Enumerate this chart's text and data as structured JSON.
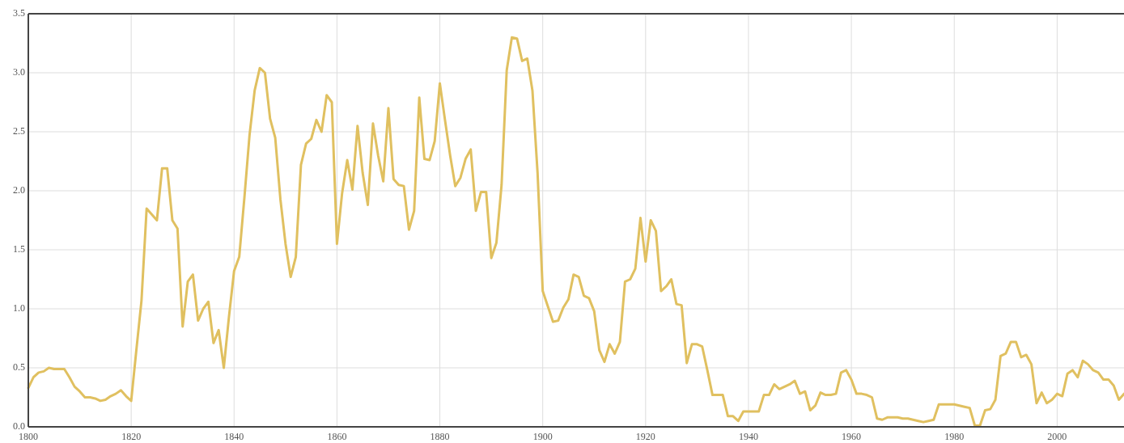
{
  "chart_data": {
    "type": "line",
    "x": [
      1800,
      1801,
      1802,
      1803,
      1804,
      1805,
      1806,
      1807,
      1808,
      1809,
      1810,
      1811,
      1812,
      1813,
      1814,
      1815,
      1816,
      1817,
      1818,
      1819,
      1820,
      1821,
      1822,
      1823,
      1824,
      1825,
      1826,
      1827,
      1828,
      1829,
      1830,
      1831,
      1832,
      1833,
      1834,
      1835,
      1836,
      1837,
      1838,
      1839,
      1840,
      1841,
      1842,
      1843,
      1844,
      1845,
      1846,
      1847,
      1848,
      1849,
      1850,
      1851,
      1852,
      1853,
      1854,
      1855,
      1856,
      1857,
      1858,
      1859,
      1860,
      1861,
      1862,
      1863,
      1864,
      1865,
      1866,
      1867,
      1868,
      1869,
      1870,
      1871,
      1872,
      1873,
      1874,
      1875,
      1876,
      1877,
      1878,
      1879,
      1880,
      1881,
      1882,
      1883,
      1884,
      1885,
      1886,
      1887,
      1888,
      1889,
      1890,
      1891,
      1892,
      1893,
      1894,
      1895,
      1896,
      1897,
      1898,
      1899,
      1900,
      1901,
      1902,
      1903,
      1904,
      1905,
      1906,
      1907,
      1908,
      1909,
      1910,
      1911,
      1912,
      1913,
      1914,
      1915,
      1916,
      1917,
      1918,
      1919,
      1920,
      1921,
      1922,
      1923,
      1924,
      1925,
      1926,
      1927,
      1928,
      1929,
      1930,
      1931,
      1932,
      1933,
      1934,
      1935,
      1936,
      1937,
      1938,
      1939,
      1940,
      1941,
      1942,
      1943,
      1944,
      1945,
      1946,
      1947,
      1948,
      1949,
      1950,
      1951,
      1952,
      1953,
      1954,
      1955,
      1956,
      1957,
      1958,
      1959,
      1960,
      1961,
      1962,
      1963,
      1964,
      1965,
      1966,
      1967,
      1968,
      1969,
      1970,
      1971,
      1972,
      1973,
      1974,
      1975,
      1976,
      1977,
      1978,
      1979,
      1980,
      1981,
      1982,
      1983,
      1984,
      1985,
      1986,
      1987,
      1988,
      1989,
      1990,
      1991,
      1992,
      1993,
      1994,
      1995,
      1996,
      1997,
      1998,
      1999,
      2000,
      2001,
      2002,
      2003,
      2004,
      2005,
      2006,
      2007,
      2008,
      2009,
      2010,
      2011,
      2012,
      2013
    ],
    "series": [
      {
        "color": "#e0c060",
        "values": [
          0.33,
          0.42,
          0.46,
          0.47,
          0.5,
          0.49,
          0.49,
          0.49,
          0.42,
          0.34,
          0.3,
          0.25,
          0.25,
          0.24,
          0.22,
          0.23,
          0.26,
          0.28,
          0.31,
          0.26,
          0.22,
          0.65,
          1.07,
          1.85,
          1.8,
          1.75,
          2.19,
          2.19,
          1.75,
          1.68,
          0.85,
          1.23,
          1.29,
          0.9,
          1.0,
          1.06,
          0.71,
          0.82,
          0.5,
          0.93,
          1.32,
          1.44,
          1.94,
          2.47,
          2.85,
          3.04,
          3.0,
          2.61,
          2.45,
          1.93,
          1.55,
          1.27,
          1.44,
          2.22,
          2.4,
          2.44,
          2.6,
          2.5,
          2.81,
          2.75,
          1.55,
          1.98,
          2.26,
          2.01,
          2.55,
          2.15,
          1.88,
          2.57,
          2.3,
          2.08,
          2.7,
          2.1,
          2.05,
          2.04,
          1.67,
          1.83,
          2.79,
          2.27,
          2.26,
          2.42,
          2.91,
          2.6,
          2.3,
          2.04,
          2.11,
          2.27,
          2.35,
          1.83,
          1.99,
          1.99,
          1.43,
          1.56,
          2.05,
          3.02,
          3.3,
          3.29,
          3.1,
          3.12,
          2.85,
          2.15,
          1.15,
          1.02,
          0.89,
          0.9,
          1.01,
          1.08,
          1.29,
          1.27,
          1.11,
          1.09,
          0.98,
          0.65,
          0.55,
          0.7,
          0.62,
          0.72,
          1.23,
          1.25,
          1.34,
          1.77,
          1.4,
          1.75,
          1.66,
          1.15,
          1.19,
          1.25,
          1.04,
          1.03,
          0.54,
          0.7,
          0.7,
          0.68,
          0.48,
          0.27,
          0.27,
          0.27,
          0.09,
          0.09,
          0.05,
          0.13,
          0.13,
          0.13,
          0.13,
          0.27,
          0.27,
          0.36,
          0.32,
          0.34,
          0.36,
          0.39,
          0.28,
          0.3,
          0.14,
          0.18,
          0.29,
          0.27,
          0.27,
          0.28,
          0.46,
          0.48,
          0.4,
          0.28,
          0.28,
          0.27,
          0.25,
          0.07,
          0.06,
          0.08,
          0.08,
          0.08,
          0.07,
          0.07,
          0.06,
          0.05,
          0.04,
          0.05,
          0.06,
          0.19,
          0.19,
          0.19,
          0.19,
          0.18,
          0.17,
          0.16,
          0.01,
          0.01,
          0.14,
          0.15,
          0.23,
          0.6,
          0.62,
          0.72,
          0.72,
          0.59,
          0.61,
          0.53,
          0.2,
          0.29,
          0.2,
          0.23,
          0.28,
          0.26,
          0.45,
          0.48,
          0.42,
          0.56,
          0.53,
          0.48,
          0.46,
          0.4,
          0.4,
          0.35,
          0.23,
          0.28
        ]
      }
    ],
    "xlim": [
      1800,
      2013
    ],
    "xticks": [
      1800,
      1820,
      1840,
      1860,
      1880,
      1900,
      1920,
      1940,
      1960,
      1980,
      2000
    ],
    "ylim": [
      0,
      3.5
    ],
    "yticks": [
      {
        "value": 0,
        "label": "0.0"
      },
      0.5,
      {
        "value": 1,
        "label": "1.0"
      },
      1.5,
      {
        "value": 2,
        "label": "2.0"
      },
      2.5,
      {
        "value": 3,
        "label": "3.0"
      },
      3.5
    ],
    "grid": true,
    "marker": "none",
    "line_style": "solid"
  }
}
